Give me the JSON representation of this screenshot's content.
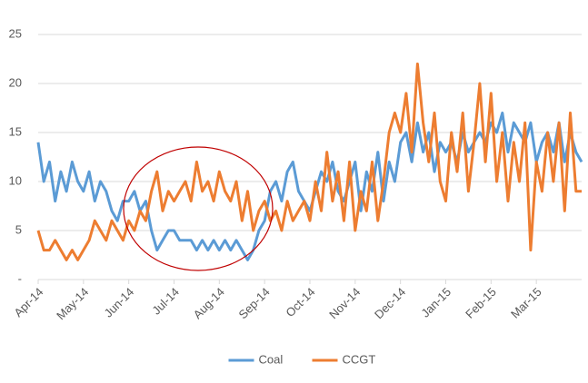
{
  "chart_data": {
    "type": "line",
    "categories": [
      "Apr-14",
      null,
      null,
      null,
      null,
      null,
      null,
      null,
      "May-14",
      null,
      null,
      null,
      null,
      null,
      null,
      null,
      "Jun-14",
      null,
      null,
      null,
      null,
      null,
      null,
      null,
      "Jul-14",
      null,
      null,
      null,
      null,
      null,
      null,
      null,
      "Aug-14",
      null,
      null,
      null,
      null,
      null,
      null,
      null,
      "Sep-14",
      null,
      null,
      null,
      null,
      null,
      null,
      null,
      "Oct-14",
      null,
      null,
      null,
      null,
      null,
      null,
      null,
      "Nov-14",
      null,
      null,
      null,
      null,
      null,
      null,
      null,
      "Dec-14",
      null,
      null,
      null,
      null,
      null,
      null,
      null,
      "Jan-15",
      null,
      null,
      null,
      null,
      null,
      null,
      null,
      "Feb-15",
      null,
      null,
      null,
      null,
      null,
      null,
      null,
      "Mar-15",
      null,
      null,
      null,
      null,
      null,
      null,
      null,
      null
    ],
    "series": [
      {
        "name": "Coal",
        "color": "#5b9bd5",
        "values": [
          14,
          10,
          12,
          8,
          11,
          9,
          12,
          10,
          9,
          11,
          8,
          10,
          9,
          7,
          6,
          8,
          8,
          9,
          7,
          8,
          5,
          3,
          4,
          5,
          5,
          4,
          4,
          4,
          3,
          4,
          3,
          4,
          3,
          4,
          3,
          4,
          3,
          2,
          3,
          5,
          6,
          9,
          10,
          8,
          11,
          12,
          9,
          8,
          7,
          9,
          11,
          10,
          12,
          9,
          8,
          10,
          12,
          7,
          11,
          9,
          13,
          8,
          12,
          10,
          14,
          15,
          12,
          16,
          13,
          15,
          11,
          14,
          13,
          14,
          12,
          15,
          13,
          14,
          15,
          14,
          16,
          15,
          17,
          13,
          16,
          15,
          14,
          16,
          12,
          14,
          15,
          13,
          16,
          12,
          15,
          13,
          12
        ]
      },
      {
        "name": "CCGT",
        "color": "#ed7d31",
        "values": [
          5,
          3,
          3,
          4,
          3,
          2,
          3,
          2,
          3,
          4,
          6,
          5,
          4,
          6,
          5,
          4,
          6,
          5,
          7,
          6,
          9,
          11,
          7,
          9,
          8,
          9,
          10,
          8,
          12,
          9,
          10,
          8,
          11,
          9,
          8,
          10,
          6,
          9,
          5,
          7,
          8,
          6,
          7,
          5,
          8,
          6,
          7,
          8,
          6,
          10,
          7,
          13,
          8,
          11,
          6,
          12,
          5,
          9,
          7,
          12,
          6,
          10,
          15,
          17,
          15,
          19,
          13,
          22,
          16,
          12,
          17,
          10,
          8,
          15,
          11,
          17,
          9,
          14,
          20,
          12,
          19,
          10,
          15,
          8,
          14,
          10,
          16,
          3,
          12,
          9,
          15,
          10,
          16,
          7,
          17,
          9,
          9
        ]
      }
    ],
    "ylim": [
      0,
      25
    ],
    "yticks": [
      {
        "value": 0,
        "label": "-"
      },
      5,
      10,
      15,
      20,
      25
    ],
    "grid": true,
    "legend": "bottom"
  }
}
